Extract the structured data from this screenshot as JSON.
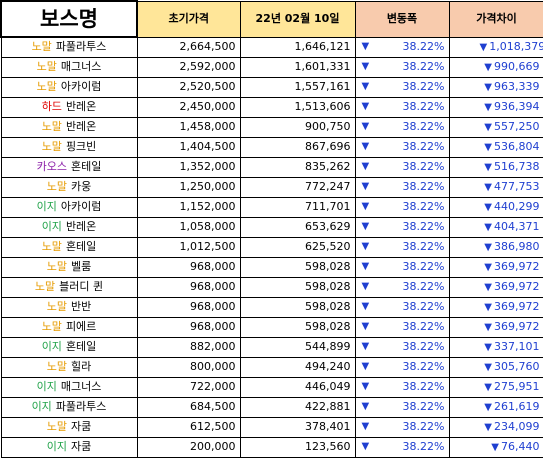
{
  "header": {
    "boss": "보스명",
    "initial_price": "초기가격",
    "date_price": "22년 02월 10일",
    "change": "변동폭",
    "diff": "가격차이"
  },
  "colors": {
    "노말": "#e69b00",
    "하드": "#e00000",
    "카오스": "#8b1fa8",
    "이지": "#22a34a",
    "header_yellow": "#ffe699",
    "header_salmon": "#f8cbad",
    "down_blue": "#1f3fd0"
  },
  "rows": [
    {
      "tier": "노말",
      "boss": "파풀라투스",
      "initial": "2,664,500",
      "current": "1,646,121",
      "change": "38.22%",
      "diff": "1,018,379"
    },
    {
      "tier": "노말",
      "boss": "매그너스",
      "initial": "2,592,000",
      "current": "1,601,331",
      "change": "38.22%",
      "diff": "990,669"
    },
    {
      "tier": "노말",
      "boss": "아카이럼",
      "initial": "2,520,500",
      "current": "1,557,161",
      "change": "38.22%",
      "diff": "963,339"
    },
    {
      "tier": "하드",
      "boss": "반레온",
      "initial": "2,450,000",
      "current": "1,513,606",
      "change": "38.22%",
      "diff": "936,394"
    },
    {
      "tier": "노말",
      "boss": "반레온",
      "initial": "1,458,000",
      "current": "900,750",
      "change": "38.22%",
      "diff": "557,250"
    },
    {
      "tier": "노말",
      "boss": "핑크빈",
      "initial": "1,404,500",
      "current": "867,696",
      "change": "38.22%",
      "diff": "536,804"
    },
    {
      "tier": "카오스",
      "boss": "혼테일",
      "initial": "1,352,000",
      "current": "835,262",
      "change": "38.22%",
      "diff": "516,738"
    },
    {
      "tier": "노말",
      "boss": "카웅",
      "initial": "1,250,000",
      "current": "772,247",
      "change": "38.22%",
      "diff": "477,753"
    },
    {
      "tier": "이지",
      "boss": "아카이럼",
      "initial": "1,152,000",
      "current": "711,701",
      "change": "38.22%",
      "diff": "440,299"
    },
    {
      "tier": "이지",
      "boss": "반레온",
      "initial": "1,058,000",
      "current": "653,629",
      "change": "38.22%",
      "diff": "404,371"
    },
    {
      "tier": "노말",
      "boss": "혼테일",
      "initial": "1,012,500",
      "current": "625,520",
      "change": "38.22%",
      "diff": "386,980"
    },
    {
      "tier": "노말",
      "boss": "벨룸",
      "initial": "968,000",
      "current": "598,028",
      "change": "38.22%",
      "diff": "369,972"
    },
    {
      "tier": "노말",
      "boss": "블러디 퀸",
      "initial": "968,000",
      "current": "598,028",
      "change": "38.22%",
      "diff": "369,972"
    },
    {
      "tier": "노말",
      "boss": "반반",
      "initial": "968,000",
      "current": "598,028",
      "change": "38.22%",
      "diff": "369,972"
    },
    {
      "tier": "노말",
      "boss": "피에르",
      "initial": "968,000",
      "current": "598,028",
      "change": "38.22%",
      "diff": "369,972"
    },
    {
      "tier": "이지",
      "boss": "혼테일",
      "initial": "882,000",
      "current": "544,899",
      "change": "38.22%",
      "diff": "337,101"
    },
    {
      "tier": "노말",
      "boss": "힐라",
      "initial": "800,000",
      "current": "494,240",
      "change": "38.22%",
      "diff": "305,760"
    },
    {
      "tier": "이지",
      "boss": "매그너스",
      "initial": "722,000",
      "current": "446,049",
      "change": "38.22%",
      "diff": "275,951"
    },
    {
      "tier": "이지",
      "boss": "파풀라투스",
      "initial": "684,500",
      "current": "422,881",
      "change": "38.22%",
      "diff": "261,619"
    },
    {
      "tier": "노말",
      "boss": "자쿰",
      "initial": "612,500",
      "current": "378,401",
      "change": "38.22%",
      "diff": "234,099"
    },
    {
      "tier": "이지",
      "boss": "자쿰",
      "initial": "200,000",
      "current": "123,560",
      "change": "38.22%",
      "diff": "76,440"
    }
  ],
  "icons": {
    "down": "down-triangle-icon"
  }
}
